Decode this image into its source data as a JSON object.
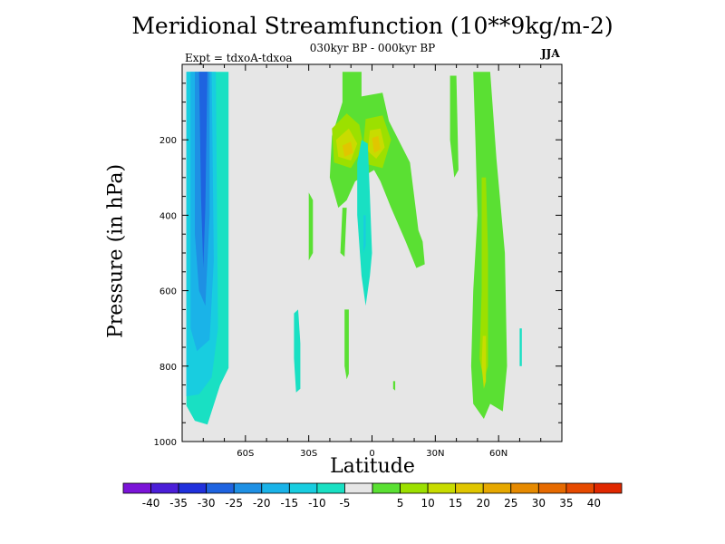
{
  "chart_data": {
    "type": "heatmap",
    "title": "Meridional Streamfunction (10**9kg/m-2)",
    "subtitle": "030kyr BP - 000kyr BP",
    "experiment": "Expt = tdxoA-tdxoa",
    "season": "JJA",
    "xlabel": "Latitude",
    "ylabel": "Pressure (in hPa)",
    "xlim": [
      -90,
      90
    ],
    "ylim": [
      1000,
      0
    ],
    "x_ticks": [
      {
        "value": -60,
        "label": "60S"
      },
      {
        "value": -30,
        "label": "30S"
      },
      {
        "value": 0,
        "label": "0"
      },
      {
        "value": 30,
        "label": "30N"
      },
      {
        "value": 60,
        "label": "60N"
      }
    ],
    "y_ticks": [
      {
        "value": 200,
        "label": "200"
      },
      {
        "value": 400,
        "label": "400"
      },
      {
        "value": 600,
        "label": "600"
      },
      {
        "value": 800,
        "label": "800"
      },
      {
        "value": 1000,
        "label": "1000"
      }
    ],
    "background_color": "#e6e6e6",
    "colorbar": {
      "colors": [
        "#7b14d8",
        "#4b1ed8",
        "#2030dc",
        "#1e63e0",
        "#1e90e4",
        "#1ab3e8",
        "#18cde0",
        "#19e0c3",
        "#e6e6e6",
        "#5ae033",
        "#9ce000",
        "#c8dc00",
        "#e0c600",
        "#e6a800",
        "#e68a00",
        "#e66a00",
        "#e64a00",
        "#e02800"
      ],
      "labels": [
        "-40",
        "-35",
        "-30",
        "-25",
        "-20",
        "-15",
        "-10",
        "-5",
        "5",
        "10",
        "15",
        "20",
        "25",
        "30",
        "35",
        "40"
      ]
    },
    "regions": [
      {
        "level": -5,
        "points": [
          [
            -88,
            20
          ],
          [
            -68,
            20
          ],
          [
            -68,
            805
          ],
          [
            -72,
            850
          ],
          [
            -78,
            955
          ],
          [
            -84,
            945
          ],
          [
            -88,
            905
          ]
        ]
      },
      {
        "level": -10,
        "points": [
          [
            -88,
            20
          ],
          [
            -74,
            20
          ],
          [
            -73,
            700
          ],
          [
            -76,
            830
          ],
          [
            -82,
            875
          ],
          [
            -88,
            880
          ]
        ]
      },
      {
        "level": -15,
        "points": [
          [
            -86,
            20
          ],
          [
            -76,
            20
          ],
          [
            -75,
            520
          ],
          [
            -77,
            730
          ],
          [
            -83,
            760
          ],
          [
            -86,
            700
          ]
        ]
      },
      {
        "level": -20,
        "points": [
          [
            -84,
            20
          ],
          [
            -77,
            20
          ],
          [
            -77,
            400
          ],
          [
            -79,
            640
          ],
          [
            -82,
            600
          ],
          [
            -84,
            450
          ]
        ]
      },
      {
        "level": -25,
        "points": [
          [
            -82,
            20
          ],
          [
            -78,
            20
          ],
          [
            -79,
            380
          ],
          [
            -80,
            540
          ],
          [
            -81,
            360
          ]
        ]
      },
      {
        "level": 5,
        "points": [
          [
            -14,
            20
          ],
          [
            -5,
            20
          ],
          [
            -5,
            85
          ],
          [
            5,
            75
          ],
          [
            8,
            150
          ],
          [
            18,
            260
          ],
          [
            22,
            440
          ],
          [
            24,
            470
          ],
          [
            25,
            530
          ],
          [
            21,
            540
          ],
          [
            16,
            470
          ],
          [
            9,
            380
          ],
          [
            4,
            310
          ],
          [
            1,
            280
          ],
          [
            -2,
            290
          ],
          [
            -8,
            310
          ],
          [
            -12,
            360
          ],
          [
            -16,
            380
          ],
          [
            -20,
            300
          ],
          [
            -19,
            190
          ],
          [
            -14,
            100
          ]
        ]
      },
      {
        "level": 10,
        "points": [
          [
            -19,
            170
          ],
          [
            -12,
            130
          ],
          [
            -6,
            160
          ],
          [
            -4,
            220
          ],
          [
            -10,
            275
          ],
          [
            -18,
            260
          ]
        ]
      },
      {
        "level": 10,
        "points": [
          [
            -3,
            145
          ],
          [
            5,
            135
          ],
          [
            9,
            200
          ],
          [
            5,
            275
          ],
          [
            -2,
            265
          ],
          [
            -4,
            205
          ]
        ]
      },
      {
        "level": 15,
        "points": [
          [
            -17,
            200
          ],
          [
            -11,
            170
          ],
          [
            -7,
            210
          ],
          [
            -10,
            255
          ],
          [
            -16,
            245
          ]
        ]
      },
      {
        "level": 15,
        "points": [
          [
            -1,
            175
          ],
          [
            4,
            170
          ],
          [
            6,
            220
          ],
          [
            2,
            250
          ],
          [
            -2,
            230
          ]
        ]
      },
      {
        "level": 20,
        "points": [
          [
            -14,
            215
          ],
          [
            -10,
            205
          ],
          [
            -9,
            235
          ],
          [
            -13,
            245
          ]
        ]
      },
      {
        "level": 20,
        "points": [
          [
            0,
            195
          ],
          [
            3,
            190
          ],
          [
            4,
            225
          ],
          [
            1,
            235
          ]
        ]
      },
      {
        "level": 5,
        "points": [
          [
            -30,
            340
          ],
          [
            -28,
            360
          ],
          [
            -28,
            500
          ],
          [
            -30,
            520
          ]
        ]
      },
      {
        "level": 5,
        "points": [
          [
            -14,
            380
          ],
          [
            -12,
            380
          ],
          [
            -13,
            510
          ],
          [
            -15,
            500
          ]
        ]
      },
      {
        "level": 5,
        "points": [
          [
            -13,
            650
          ],
          [
            -11,
            650
          ],
          [
            -11,
            820
          ],
          [
            -12,
            835
          ],
          [
            -13,
            800
          ]
        ]
      },
      {
        "level": 5,
        "points": [
          [
            10,
            840
          ],
          [
            11,
            840
          ],
          [
            11,
            865
          ],
          [
            10,
            860
          ]
        ]
      },
      {
        "level": 5,
        "points": [
          [
            37,
            30
          ],
          [
            40,
            30
          ],
          [
            41,
            280
          ],
          [
            39,
            300
          ],
          [
            37,
            200
          ]
        ]
      },
      {
        "level": 5,
        "points": [
          [
            48,
            20
          ],
          [
            56,
            20
          ],
          [
            59,
            250
          ],
          [
            63,
            500
          ],
          [
            64,
            800
          ],
          [
            62,
            920
          ],
          [
            56,
            900
          ],
          [
            53,
            940
          ],
          [
            48,
            900
          ],
          [
            47,
            800
          ],
          [
            48,
            600
          ],
          [
            50,
            400
          ],
          [
            49,
            200
          ]
        ]
      },
      {
        "level": 10,
        "points": [
          [
            52,
            300
          ],
          [
            54,
            300
          ],
          [
            55,
            500
          ],
          [
            55,
            800
          ],
          [
            53,
            840
          ],
          [
            51,
            780
          ],
          [
            52,
            600
          ]
        ]
      },
      {
        "level": 15,
        "points": [
          [
            52.5,
            720
          ],
          [
            54,
            720
          ],
          [
            54,
            840
          ],
          [
            53,
            860
          ],
          [
            52,
            800
          ]
        ]
      },
      {
        "level": -5,
        "points": [
          [
            -5,
            200
          ],
          [
            -2,
            210
          ],
          [
            -1,
            350
          ],
          [
            0,
            500
          ],
          [
            -1,
            560
          ],
          [
            -3,
            640
          ],
          [
            -5,
            560
          ],
          [
            -7,
            400
          ],
          [
            -7,
            260
          ]
        ]
      },
      {
        "level": -10,
        "points": [
          [
            -4,
            400
          ],
          [
            -3,
            400
          ],
          [
            -3,
            480
          ],
          [
            -4,
            500
          ]
        ]
      },
      {
        "level": -5,
        "points": [
          [
            -37,
            660
          ],
          [
            -35,
            650
          ],
          [
            -34,
            740
          ],
          [
            -34,
            860
          ],
          [
            -36,
            870
          ],
          [
            -37,
            780
          ]
        ]
      },
      {
        "level": -5,
        "points": [
          [
            70,
            700
          ],
          [
            71,
            700
          ],
          [
            71,
            800
          ],
          [
            70,
            800
          ]
        ]
      }
    ]
  }
}
